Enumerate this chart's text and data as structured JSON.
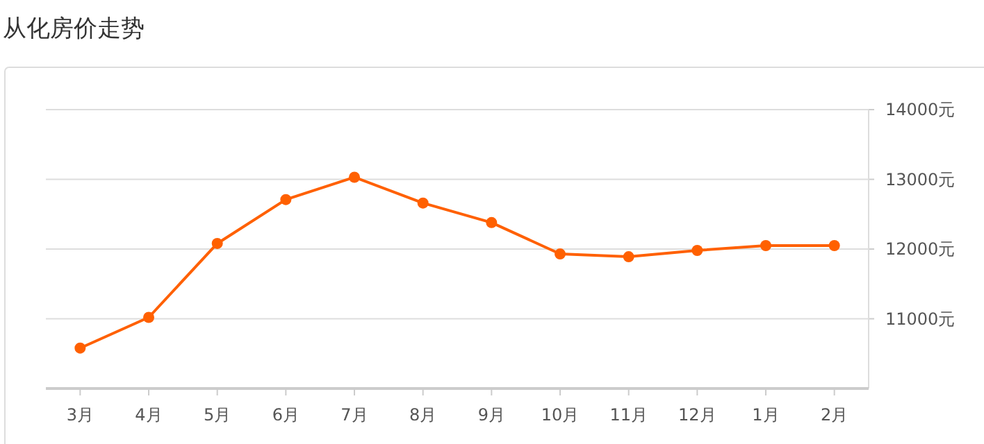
{
  "chart_data": {
    "type": "line",
    "title": "从化房价走势",
    "categories": [
      "3月",
      "4月",
      "5月",
      "6月",
      "7月",
      "8月",
      "9月",
      "10月",
      "11月",
      "12月",
      "1月",
      "2月"
    ],
    "series": [
      {
        "color": "#ff6000",
        "values": [
          10580,
          11020,
          12080,
          12710,
          13030,
          12660,
          12380,
          11930,
          11890,
          11980,
          12050,
          12050
        ]
      }
    ],
    "ylim": [
      10000,
      14000
    ],
    "yticks": [
      {
        "value": 11000,
        "label": "11000元"
      },
      {
        "value": 12000,
        "label": "12000元"
      },
      {
        "value": 13000,
        "label": "13000元"
      },
      {
        "value": 14000,
        "label": "14000元"
      }
    ],
    "grid": "y",
    "marker": "circle",
    "line_style": "solid"
  }
}
